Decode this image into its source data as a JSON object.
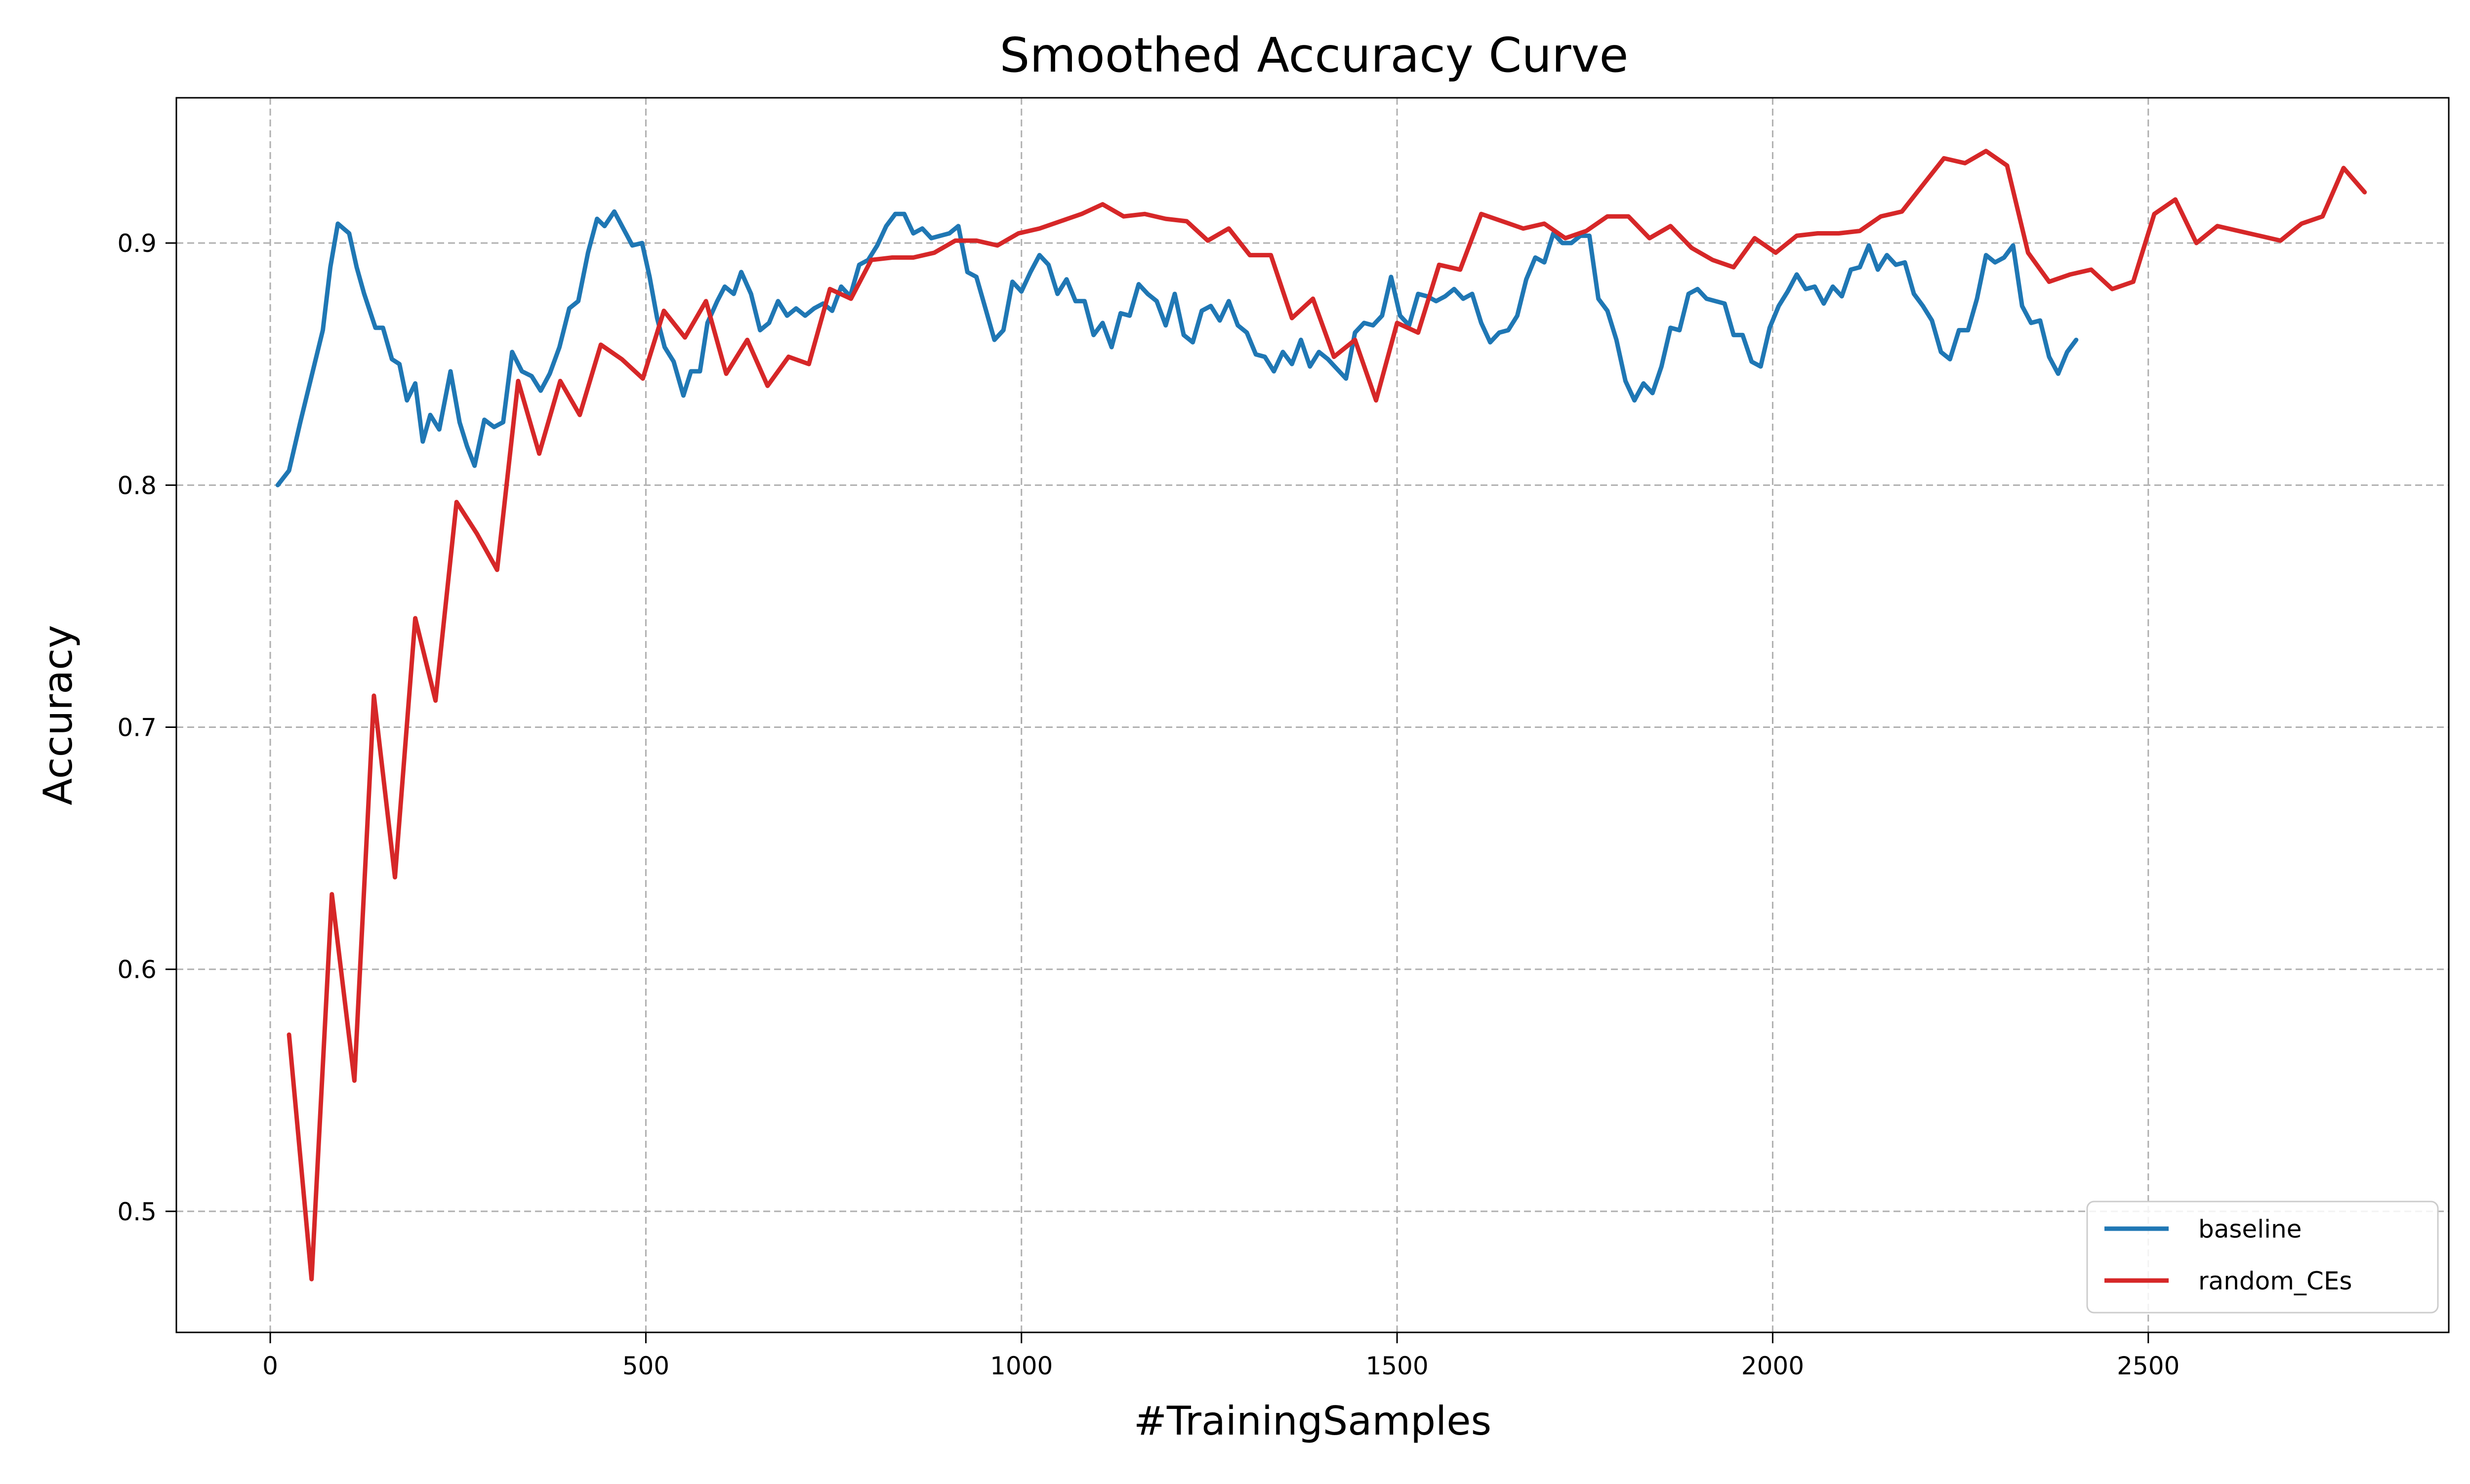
{
  "chart_data": {
    "type": "line",
    "title": "Smoothed Accuracy Curve",
    "xlabel": "#TrainingSamples",
    "ylabel": "Accuracy",
    "xlim": [
      -125,
      2900
    ],
    "ylim": [
      0.45,
      0.96
    ],
    "xticks": [
      0,
      500,
      1000,
      1500,
      2000,
      2500
    ],
    "yticks": [
      0.5,
      0.6,
      0.7,
      0.8,
      0.9
    ],
    "grid": true,
    "legend_position": "lower-right",
    "series": [
      {
        "name": "baseline",
        "color": "#1f77b4",
        "points": [
          [
            10,
            0.8
          ],
          [
            25,
            0.806
          ],
          [
            40,
            0.826
          ],
          [
            55,
            0.845
          ],
          [
            70,
            0.864
          ],
          [
            80,
            0.89
          ],
          [
            90,
            0.908
          ],
          [
            105,
            0.904
          ],
          [
            115,
            0.89
          ],
          [
            125,
            0.879
          ],
          [
            140,
            0.865
          ],
          [
            150,
            0.865
          ],
          [
            162,
            0.852
          ],
          [
            172,
            0.85
          ],
          [
            182,
            0.835
          ],
          [
            193,
            0.842
          ],
          [
            203,
            0.818
          ],
          [
            213,
            0.829
          ],
          [
            225,
            0.823
          ],
          [
            240,
            0.847
          ],
          [
            252,
            0.826
          ],
          [
            262,
            0.816
          ],
          [
            272,
            0.808
          ],
          [
            285,
            0.827
          ],
          [
            298,
            0.824
          ],
          [
            310,
            0.826
          ],
          [
            322,
            0.855
          ],
          [
            335,
            0.847
          ],
          [
            348,
            0.845
          ],
          [
            360,
            0.839
          ],
          [
            372,
            0.846
          ],
          [
            385,
            0.857
          ],
          [
            398,
            0.873
          ],
          [
            410,
            0.876
          ],
          [
            423,
            0.896
          ],
          [
            435,
            0.91
          ],
          [
            445,
            0.907
          ],
          [
            458,
            0.913
          ],
          [
            470,
            0.906
          ],
          [
            482,
            0.899
          ],
          [
            495,
            0.9
          ],
          [
            505,
            0.886
          ],
          [
            515,
            0.869
          ],
          [
            525,
            0.857
          ],
          [
            537,
            0.851
          ],
          [
            550,
            0.837
          ],
          [
            560,
            0.847
          ],
          [
            572,
            0.847
          ],
          [
            582,
            0.867
          ],
          [
            595,
            0.876
          ],
          [
            605,
            0.882
          ],
          [
            617,
            0.879
          ],
          [
            627,
            0.888
          ],
          [
            640,
            0.879
          ],
          [
            652,
            0.864
          ],
          [
            664,
            0.867
          ],
          [
            676,
            0.876
          ],
          [
            688,
            0.87
          ],
          [
            700,
            0.873
          ],
          [
            712,
            0.87
          ],
          [
            724,
            0.873
          ],
          [
            736,
            0.875
          ],
          [
            748,
            0.872
          ],
          [
            760,
            0.882
          ],
          [
            772,
            0.878
          ],
          [
            784,
            0.891
          ],
          [
            796,
            0.893
          ],
          [
            808,
            0.899
          ],
          [
            820,
            0.907
          ],
          [
            832,
            0.912
          ],
          [
            844,
            0.912
          ],
          [
            856,
            0.904
          ],
          [
            868,
            0.906
          ],
          [
            880,
            0.902
          ],
          [
            892,
            0.903
          ],
          [
            904,
            0.904
          ],
          [
            916,
            0.907
          ],
          [
            928,
            0.888
          ],
          [
            940,
            0.886
          ],
          [
            952,
            0.873
          ],
          [
            964,
            0.86
          ],
          [
            976,
            0.864
          ],
          [
            988,
            0.884
          ],
          [
            1000,
            0.88
          ],
          [
            1012,
            0.888
          ],
          [
            1024,
            0.895
          ],
          [
            1036,
            0.891
          ],
          [
            1048,
            0.879
          ],
          [
            1060,
            0.885
          ],
          [
            1072,
            0.876
          ],
          [
            1084,
            0.876
          ],
          [
            1096,
            0.862
          ],
          [
            1108,
            0.867
          ],
          [
            1120,
            0.857
          ],
          [
            1132,
            0.871
          ],
          [
            1144,
            0.87
          ],
          [
            1156,
            0.883
          ],
          [
            1168,
            0.879
          ],
          [
            1180,
            0.876
          ],
          [
            1192,
            0.866
          ],
          [
            1204,
            0.879
          ],
          [
            1216,
            0.862
          ],
          [
            1228,
            0.859
          ],
          [
            1240,
            0.872
          ],
          [
            1252,
            0.874
          ],
          [
            1264,
            0.868
          ],
          [
            1276,
            0.876
          ],
          [
            1288,
            0.866
          ],
          [
            1300,
            0.863
          ],
          [
            1312,
            0.854
          ],
          [
            1324,
            0.853
          ],
          [
            1336,
            0.847
          ],
          [
            1348,
            0.855
          ],
          [
            1360,
            0.85
          ],
          [
            1372,
            0.86
          ],
          [
            1384,
            0.849
          ],
          [
            1396,
            0.855
          ],
          [
            1408,
            0.852
          ],
          [
            1420,
            0.848
          ],
          [
            1432,
            0.844
          ],
          [
            1444,
            0.863
          ],
          [
            1456,
            0.867
          ],
          [
            1468,
            0.866
          ],
          [
            1480,
            0.87
          ],
          [
            1492,
            0.886
          ],
          [
            1504,
            0.87
          ],
          [
            1516,
            0.866
          ],
          [
            1528,
            0.879
          ],
          [
            1540,
            0.878
          ],
          [
            1552,
            0.876
          ],
          [
            1564,
            0.878
          ],
          [
            1576,
            0.881
          ],
          [
            1588,
            0.877
          ],
          [
            1600,
            0.879
          ],
          [
            1612,
            0.867
          ],
          [
            1624,
            0.859
          ],
          [
            1636,
            0.863
          ],
          [
            1648,
            0.864
          ],
          [
            1660,
            0.87
          ],
          [
            1672,
            0.885
          ],
          [
            1684,
            0.894
          ],
          [
            1696,
            0.892
          ],
          [
            1708,
            0.904
          ],
          [
            1720,
            0.9
          ],
          [
            1732,
            0.9
          ],
          [
            1744,
            0.903
          ],
          [
            1756,
            0.903
          ],
          [
            1768,
            0.877
          ],
          [
            1780,
            0.872
          ],
          [
            1792,
            0.86
          ],
          [
            1804,
            0.843
          ],
          [
            1816,
            0.835
          ],
          [
            1828,
            0.842
          ],
          [
            1840,
            0.838
          ],
          [
            1852,
            0.849
          ],
          [
            1864,
            0.865
          ],
          [
            1876,
            0.864
          ],
          [
            1888,
            0.879
          ],
          [
            1900,
            0.881
          ],
          [
            1912,
            0.877
          ],
          [
            1924,
            0.876
          ],
          [
            1936,
            0.875
          ],
          [
            1948,
            0.862
          ],
          [
            1960,
            0.862
          ],
          [
            1972,
            0.851
          ],
          [
            1984,
            0.849
          ],
          [
            1996,
            0.865
          ],
          [
            2008,
            0.874
          ],
          [
            2020,
            0.88
          ],
          [
            2032,
            0.887
          ],
          [
            2044,
            0.881
          ],
          [
            2056,
            0.882
          ],
          [
            2068,
            0.875
          ],
          [
            2080,
            0.882
          ],
          [
            2092,
            0.878
          ],
          [
            2104,
            0.889
          ],
          [
            2116,
            0.89
          ],
          [
            2128,
            0.899
          ],
          [
            2140,
            0.889
          ],
          [
            2152,
            0.895
          ],
          [
            2164,
            0.891
          ],
          [
            2176,
            0.892
          ],
          [
            2188,
            0.879
          ],
          [
            2200,
            0.874
          ],
          [
            2212,
            0.868
          ],
          [
            2224,
            0.855
          ],
          [
            2236,
            0.852
          ],
          [
            2248,
            0.864
          ],
          [
            2260,
            0.864
          ],
          [
            2272,
            0.877
          ],
          [
            2284,
            0.895
          ],
          [
            2296,
            0.892
          ],
          [
            2308,
            0.894
          ],
          [
            2320,
            0.899
          ],
          [
            2332,
            0.874
          ],
          [
            2344,
            0.867
          ],
          [
            2356,
            0.868
          ],
          [
            2368,
            0.853
          ],
          [
            2380,
            0.846
          ],
          [
            2392,
            0.855
          ],
          [
            2404,
            0.86
          ]
        ]
      },
      {
        "name": "random_CEs",
        "color": "#d62728",
        "points": [
          [
            25,
            0.573
          ],
          [
            55,
            0.472
          ],
          [
            82,
            0.631
          ],
          [
            112,
            0.554
          ],
          [
            138,
            0.713
          ],
          [
            166,
            0.638
          ],
          [
            193,
            0.745
          ],
          [
            220,
            0.711
          ],
          [
            248,
            0.793
          ],
          [
            275,
            0.78
          ],
          [
            302,
            0.765
          ],
          [
            330,
            0.843
          ],
          [
            358,
            0.813
          ],
          [
            386,
            0.843
          ],
          [
            412,
            0.829
          ],
          [
            440,
            0.858
          ],
          [
            468,
            0.852
          ],
          [
            496,
            0.844
          ],
          [
            524,
            0.872
          ],
          [
            552,
            0.861
          ],
          [
            580,
            0.876
          ],
          [
            607,
            0.846
          ],
          [
            635,
            0.86
          ],
          [
            662,
            0.841
          ],
          [
            690,
            0.853
          ],
          [
            717,
            0.85
          ],
          [
            745,
            0.881
          ],
          [
            773,
            0.877
          ],
          [
            800,
            0.893
          ],
          [
            828,
            0.894
          ],
          [
            856,
            0.894
          ],
          [
            884,
            0.896
          ],
          [
            912,
            0.901
          ],
          [
            940,
            0.901
          ],
          [
            968,
            0.899
          ],
          [
            996,
            0.904
          ],
          [
            1024,
            0.906
          ],
          [
            1052,
            0.909
          ],
          [
            1080,
            0.912
          ],
          [
            1108,
            0.916
          ],
          [
            1136,
            0.911
          ],
          [
            1164,
            0.912
          ],
          [
            1192,
            0.91
          ],
          [
            1220,
            0.909
          ],
          [
            1248,
            0.901
          ],
          [
            1276,
            0.906
          ],
          [
            1304,
            0.895
          ],
          [
            1332,
            0.895
          ],
          [
            1360,
            0.869
          ],
          [
            1388,
            0.877
          ],
          [
            1416,
            0.853
          ],
          [
            1444,
            0.86
          ],
          [
            1472,
            0.835
          ],
          [
            1500,
            0.867
          ],
          [
            1528,
            0.863
          ],
          [
            1556,
            0.891
          ],
          [
            1584,
            0.889
          ],
          [
            1612,
            0.912
          ],
          [
            1640,
            0.909
          ],
          [
            1668,
            0.906
          ],
          [
            1696,
            0.908
          ],
          [
            1724,
            0.902
          ],
          [
            1752,
            0.905
          ],
          [
            1780,
            0.911
          ],
          [
            1808,
            0.911
          ],
          [
            1836,
            0.902
          ],
          [
            1864,
            0.907
          ],
          [
            1892,
            0.898
          ],
          [
            1920,
            0.893
          ],
          [
            1948,
            0.89
          ],
          [
            1976,
            0.902
          ],
          [
            2004,
            0.896
          ],
          [
            2032,
            0.903
          ],
          [
            2060,
            0.904
          ],
          [
            2088,
            0.904
          ],
          [
            2116,
            0.905
          ],
          [
            2144,
            0.911
          ],
          [
            2172,
            0.913
          ],
          [
            2200,
            0.924
          ],
          [
            2228,
            0.935
          ],
          [
            2256,
            0.933
          ],
          [
            2284,
            0.938
          ],
          [
            2312,
            0.932
          ],
          [
            2340,
            0.896
          ],
          [
            2368,
            0.884
          ],
          [
            2396,
            0.887
          ],
          [
            2424,
            0.889
          ],
          [
            2452,
            0.881
          ],
          [
            2480,
            0.884
          ],
          [
            2508,
            0.912
          ],
          [
            2536,
            0.918
          ],
          [
            2564,
            0.9
          ],
          [
            2592,
            0.907
          ],
          [
            2620,
            0.905
          ],
          [
            2648,
            0.903
          ],
          [
            2676,
            0.901
          ],
          [
            2704,
            0.908
          ],
          [
            2732,
            0.911
          ],
          [
            2760,
            0.931
          ],
          [
            2788,
            0.921
          ]
        ]
      }
    ]
  }
}
